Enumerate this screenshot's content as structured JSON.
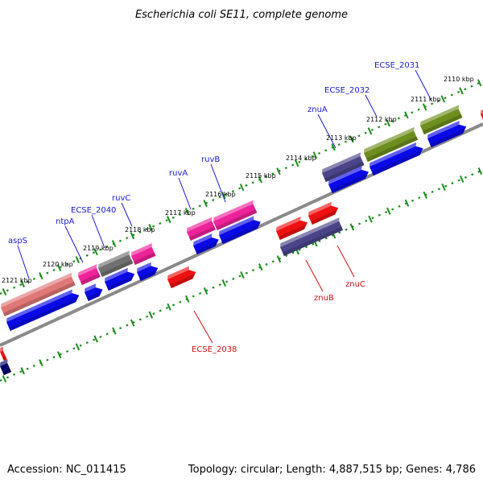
{
  "title": "Escherichia coli SE11, complete genome",
  "footer": {
    "accession": "Accession: NC_011415",
    "topology": "Topology: circular; Length: 4,887,515 bp; Genes: 4,786"
  },
  "colors": {
    "backbone": "#8a8a8a",
    "tick": "#1d8a1d",
    "cds_forward": "#0a0ae6",
    "cds_reverse": "#ee1111",
    "label_forward": "#1a1acc",
    "label_reverse": "#cc1111",
    "feature_olive": "#6e8e1e",
    "feature_purple": "#4a4488",
    "feature_pink": "#ee2299",
    "feature_gray": "#707070",
    "feature_salmon": "#e07878"
  },
  "kbp_labels": [
    "2110 kbp",
    "2111 kbp",
    "2112 kbp",
    "2113 kbp",
    "2114 kbp",
    "2115 kbp",
    "2116 kbp",
    "2117 kbp",
    "2118 kbp",
    "2119 kbp",
    "2120 kbp",
    "2121 kbp"
  ],
  "gene_labels_forward": [
    "ECSE_2031",
    "ECSE_2032",
    "znuA",
    "ruvB",
    "ruvA",
    "ruvC",
    "ECSE_2040",
    "ntpA",
    "aspS"
  ],
  "gene_labels_reverse": [
    "znuC",
    "znuB",
    "ECSE_2038"
  ]
}
